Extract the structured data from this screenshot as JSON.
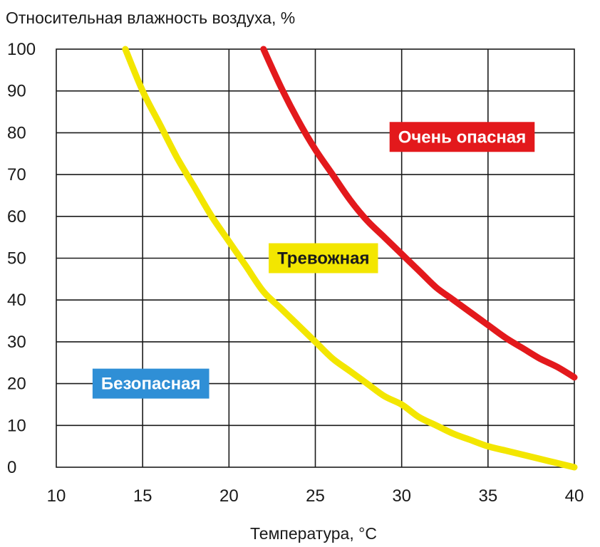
{
  "chart_data": {
    "type": "line",
    "ylabel": "Относительная влажность воздуха, %",
    "xlabel": "Температура, °C",
    "xlim": [
      10,
      40
    ],
    "ylim": [
      0,
      100
    ],
    "xticks": [
      10,
      15,
      20,
      25,
      30,
      35,
      40
    ],
    "yticks": [
      0,
      10,
      20,
      30,
      40,
      50,
      60,
      70,
      80,
      90,
      100
    ],
    "grid": true,
    "series": [
      {
        "color": "#f3e600",
        "x": [
          14,
          15,
          16,
          17,
          18,
          19,
          20,
          21,
          22,
          23,
          24,
          25,
          26,
          27,
          28,
          29,
          30,
          31,
          32,
          33,
          34,
          35,
          36,
          37,
          38,
          39,
          40
        ],
        "y": [
          100,
          90,
          82,
          74,
          67,
          60,
          54,
          48,
          42,
          38,
          34,
          30,
          26,
          23,
          20,
          17,
          15,
          12,
          10,
          8,
          6.5,
          5,
          4,
          3,
          2,
          1,
          0
        ]
      },
      {
        "color": "#e3191c",
        "x": [
          22,
          23,
          24,
          25,
          26,
          27,
          28,
          29,
          30,
          31,
          32,
          33,
          34,
          35,
          36,
          37,
          38,
          39,
          40
        ],
        "y": [
          100,
          91,
          83,
          76,
          70,
          64,
          59,
          55,
          51,
          47,
          43,
          40,
          37,
          34,
          31,
          28.5,
          26,
          24,
          21.5
        ]
      }
    ],
    "annotations": [
      {
        "text": "Очень опасная",
        "x": 29.3,
        "y": 79,
        "bg": "#e3191c",
        "fg": "#ffffff"
      },
      {
        "text": "Тревожная",
        "x": 22.3,
        "y": 50,
        "bg": "#f3e600",
        "fg": "#1a1a1a"
      },
      {
        "text": "Безопасная",
        "x": 12.1,
        "y": 20,
        "bg": "#2f8fd6",
        "fg": "#ffffff"
      }
    ]
  }
}
